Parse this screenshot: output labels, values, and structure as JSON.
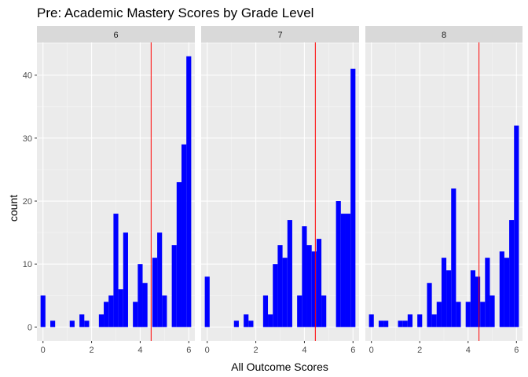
{
  "chart_data": {
    "type": "bar",
    "title": "Pre: Academic Mastery Scores by Grade Level",
    "xlabel": "All Outcome Scores",
    "ylabel": "count",
    "xlim": [
      -0.25,
      6.25
    ],
    "ylim": [
      -2.2,
      45.2
    ],
    "x_ticks": [
      0,
      2,
      4,
      6
    ],
    "y_ticks": [
      0,
      10,
      20,
      30,
      40
    ],
    "bin_width": 0.2,
    "reference_line_x": 4.45,
    "bar_color": "#0000ff",
    "reference_line_color": "#ff0000",
    "panel_background": "#ebebeb",
    "strip_background": "#d9d9d9",
    "grid": true,
    "facets": [
      {
        "label": "6",
        "bins": [
          {
            "x": 0.0,
            "count": 5
          },
          {
            "x": 0.4,
            "count": 1
          },
          {
            "x": 1.2,
            "count": 1
          },
          {
            "x": 1.6,
            "count": 2
          },
          {
            "x": 1.8,
            "count": 1
          },
          {
            "x": 2.4,
            "count": 2
          },
          {
            "x": 2.6,
            "count": 4
          },
          {
            "x": 2.8,
            "count": 5
          },
          {
            "x": 3.0,
            "count": 18
          },
          {
            "x": 3.2,
            "count": 6
          },
          {
            "x": 3.4,
            "count": 15
          },
          {
            "x": 3.8,
            "count": 4
          },
          {
            "x": 4.0,
            "count": 10
          },
          {
            "x": 4.2,
            "count": 7
          },
          {
            "x": 4.6,
            "count": 11
          },
          {
            "x": 4.8,
            "count": 15
          },
          {
            "x": 5.0,
            "count": 5
          },
          {
            "x": 5.4,
            "count": 13
          },
          {
            "x": 5.6,
            "count": 23
          },
          {
            "x": 5.8,
            "count": 29
          },
          {
            "x": 6.0,
            "count": 43
          }
        ]
      },
      {
        "label": "7",
        "bins": [
          {
            "x": 0.0,
            "count": 8
          },
          {
            "x": 1.2,
            "count": 1
          },
          {
            "x": 1.6,
            "count": 2
          },
          {
            "x": 1.8,
            "count": 1
          },
          {
            "x": 2.4,
            "count": 5
          },
          {
            "x": 2.6,
            "count": 2
          },
          {
            "x": 2.8,
            "count": 10
          },
          {
            "x": 3.0,
            "count": 13
          },
          {
            "x": 3.2,
            "count": 11
          },
          {
            "x": 3.4,
            "count": 17
          },
          {
            "x": 3.8,
            "count": 5
          },
          {
            "x": 4.0,
            "count": 16
          },
          {
            "x": 4.2,
            "count": 13
          },
          {
            "x": 4.4,
            "count": 12
          },
          {
            "x": 4.6,
            "count": 14
          },
          {
            "x": 4.8,
            "count": 5
          },
          {
            "x": 5.4,
            "count": 20
          },
          {
            "x": 5.6,
            "count": 18
          },
          {
            "x": 5.8,
            "count": 18
          },
          {
            "x": 6.0,
            "count": 41
          }
        ]
      },
      {
        "label": "8",
        "bins": [
          {
            "x": 0.0,
            "count": 2
          },
          {
            "x": 0.4,
            "count": 1
          },
          {
            "x": 0.6,
            "count": 1
          },
          {
            "x": 1.2,
            "count": 1
          },
          {
            "x": 1.4,
            "count": 1
          },
          {
            "x": 1.6,
            "count": 2
          },
          {
            "x": 2.0,
            "count": 2
          },
          {
            "x": 2.4,
            "count": 7
          },
          {
            "x": 2.6,
            "count": 2
          },
          {
            "x": 2.8,
            "count": 4
          },
          {
            "x": 3.0,
            "count": 11
          },
          {
            "x": 3.2,
            "count": 9
          },
          {
            "x": 3.4,
            "count": 22
          },
          {
            "x": 3.6,
            "count": 4
          },
          {
            "x": 4.0,
            "count": 4
          },
          {
            "x": 4.2,
            "count": 9
          },
          {
            "x": 4.4,
            "count": 8
          },
          {
            "x": 4.6,
            "count": 4
          },
          {
            "x": 4.8,
            "count": 11
          },
          {
            "x": 5.0,
            "count": 5
          },
          {
            "x": 5.4,
            "count": 12
          },
          {
            "x": 5.6,
            "count": 11
          },
          {
            "x": 5.8,
            "count": 17
          },
          {
            "x": 6.0,
            "count": 32
          }
        ]
      }
    ]
  }
}
